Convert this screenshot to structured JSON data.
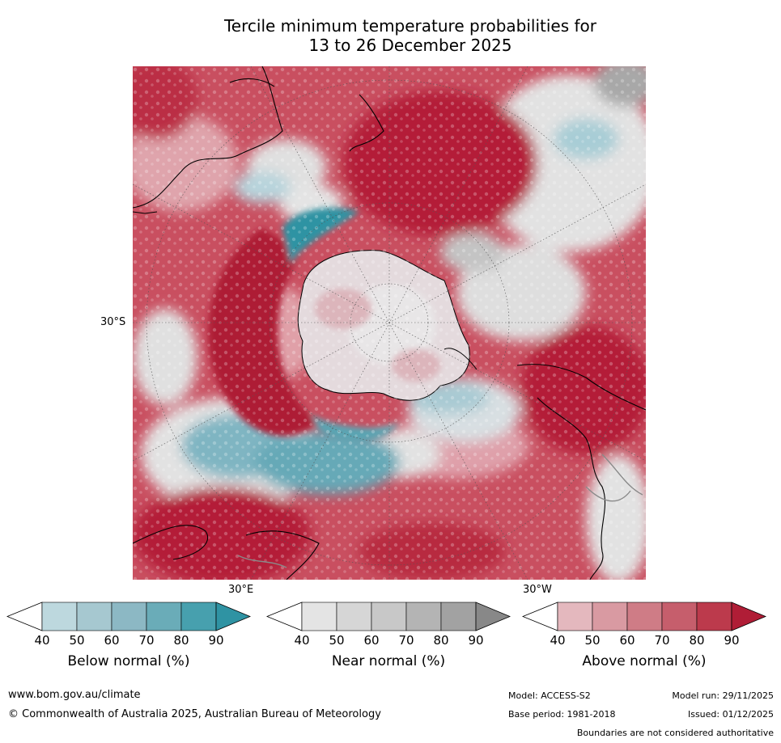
{
  "title": {
    "line1": "Tercile minimum temperature probabilities for",
    "line2": "13 to 26 December 2025"
  },
  "map": {
    "projection": "south-polar",
    "lat_label": "30°S",
    "lon_labels": {
      "east": "30°E",
      "west": "30°W"
    }
  },
  "colorbars": [
    {
      "id": "below",
      "label": "Below normal (%)",
      "ticks": [
        "40",
        "50",
        "60",
        "70",
        "80",
        "90"
      ],
      "colors": [
        "#ffffff",
        "#bdd8de",
        "#a6c8d0",
        "#8cb8c4",
        "#6aacb8",
        "#47a0ae",
        "#2f93a3"
      ]
    },
    {
      "id": "near",
      "label": "Near normal (%)",
      "ticks": [
        "40",
        "50",
        "60",
        "70",
        "80",
        "90"
      ],
      "colors": [
        "#ffffff",
        "#e4e4e4",
        "#d6d6d6",
        "#c8c8c8",
        "#b4b4b4",
        "#a2a2a2",
        "#888888"
      ]
    },
    {
      "id": "above",
      "label": "Above normal (%)",
      "ticks": [
        "40",
        "50",
        "60",
        "70",
        "80",
        "90"
      ],
      "colors": [
        "#ffffff",
        "#e4b8be",
        "#d99aa2",
        "#cf7c86",
        "#c65e6c",
        "#bc3a4c",
        "#b01d36"
      ]
    }
  ],
  "footer": {
    "website": "www.bom.gov.au/climate",
    "copyright": "© Commonwealth of Australia 2025, Australian Bureau of Meteorology",
    "model": "Model: ACCESS-S2",
    "model_run": "Model run: 29/11/2025",
    "base_period": "Base period: 1981-2018",
    "issued": "Issued: 01/12/2025",
    "disclaimer": "Boundaries are not considered authoritative"
  }
}
